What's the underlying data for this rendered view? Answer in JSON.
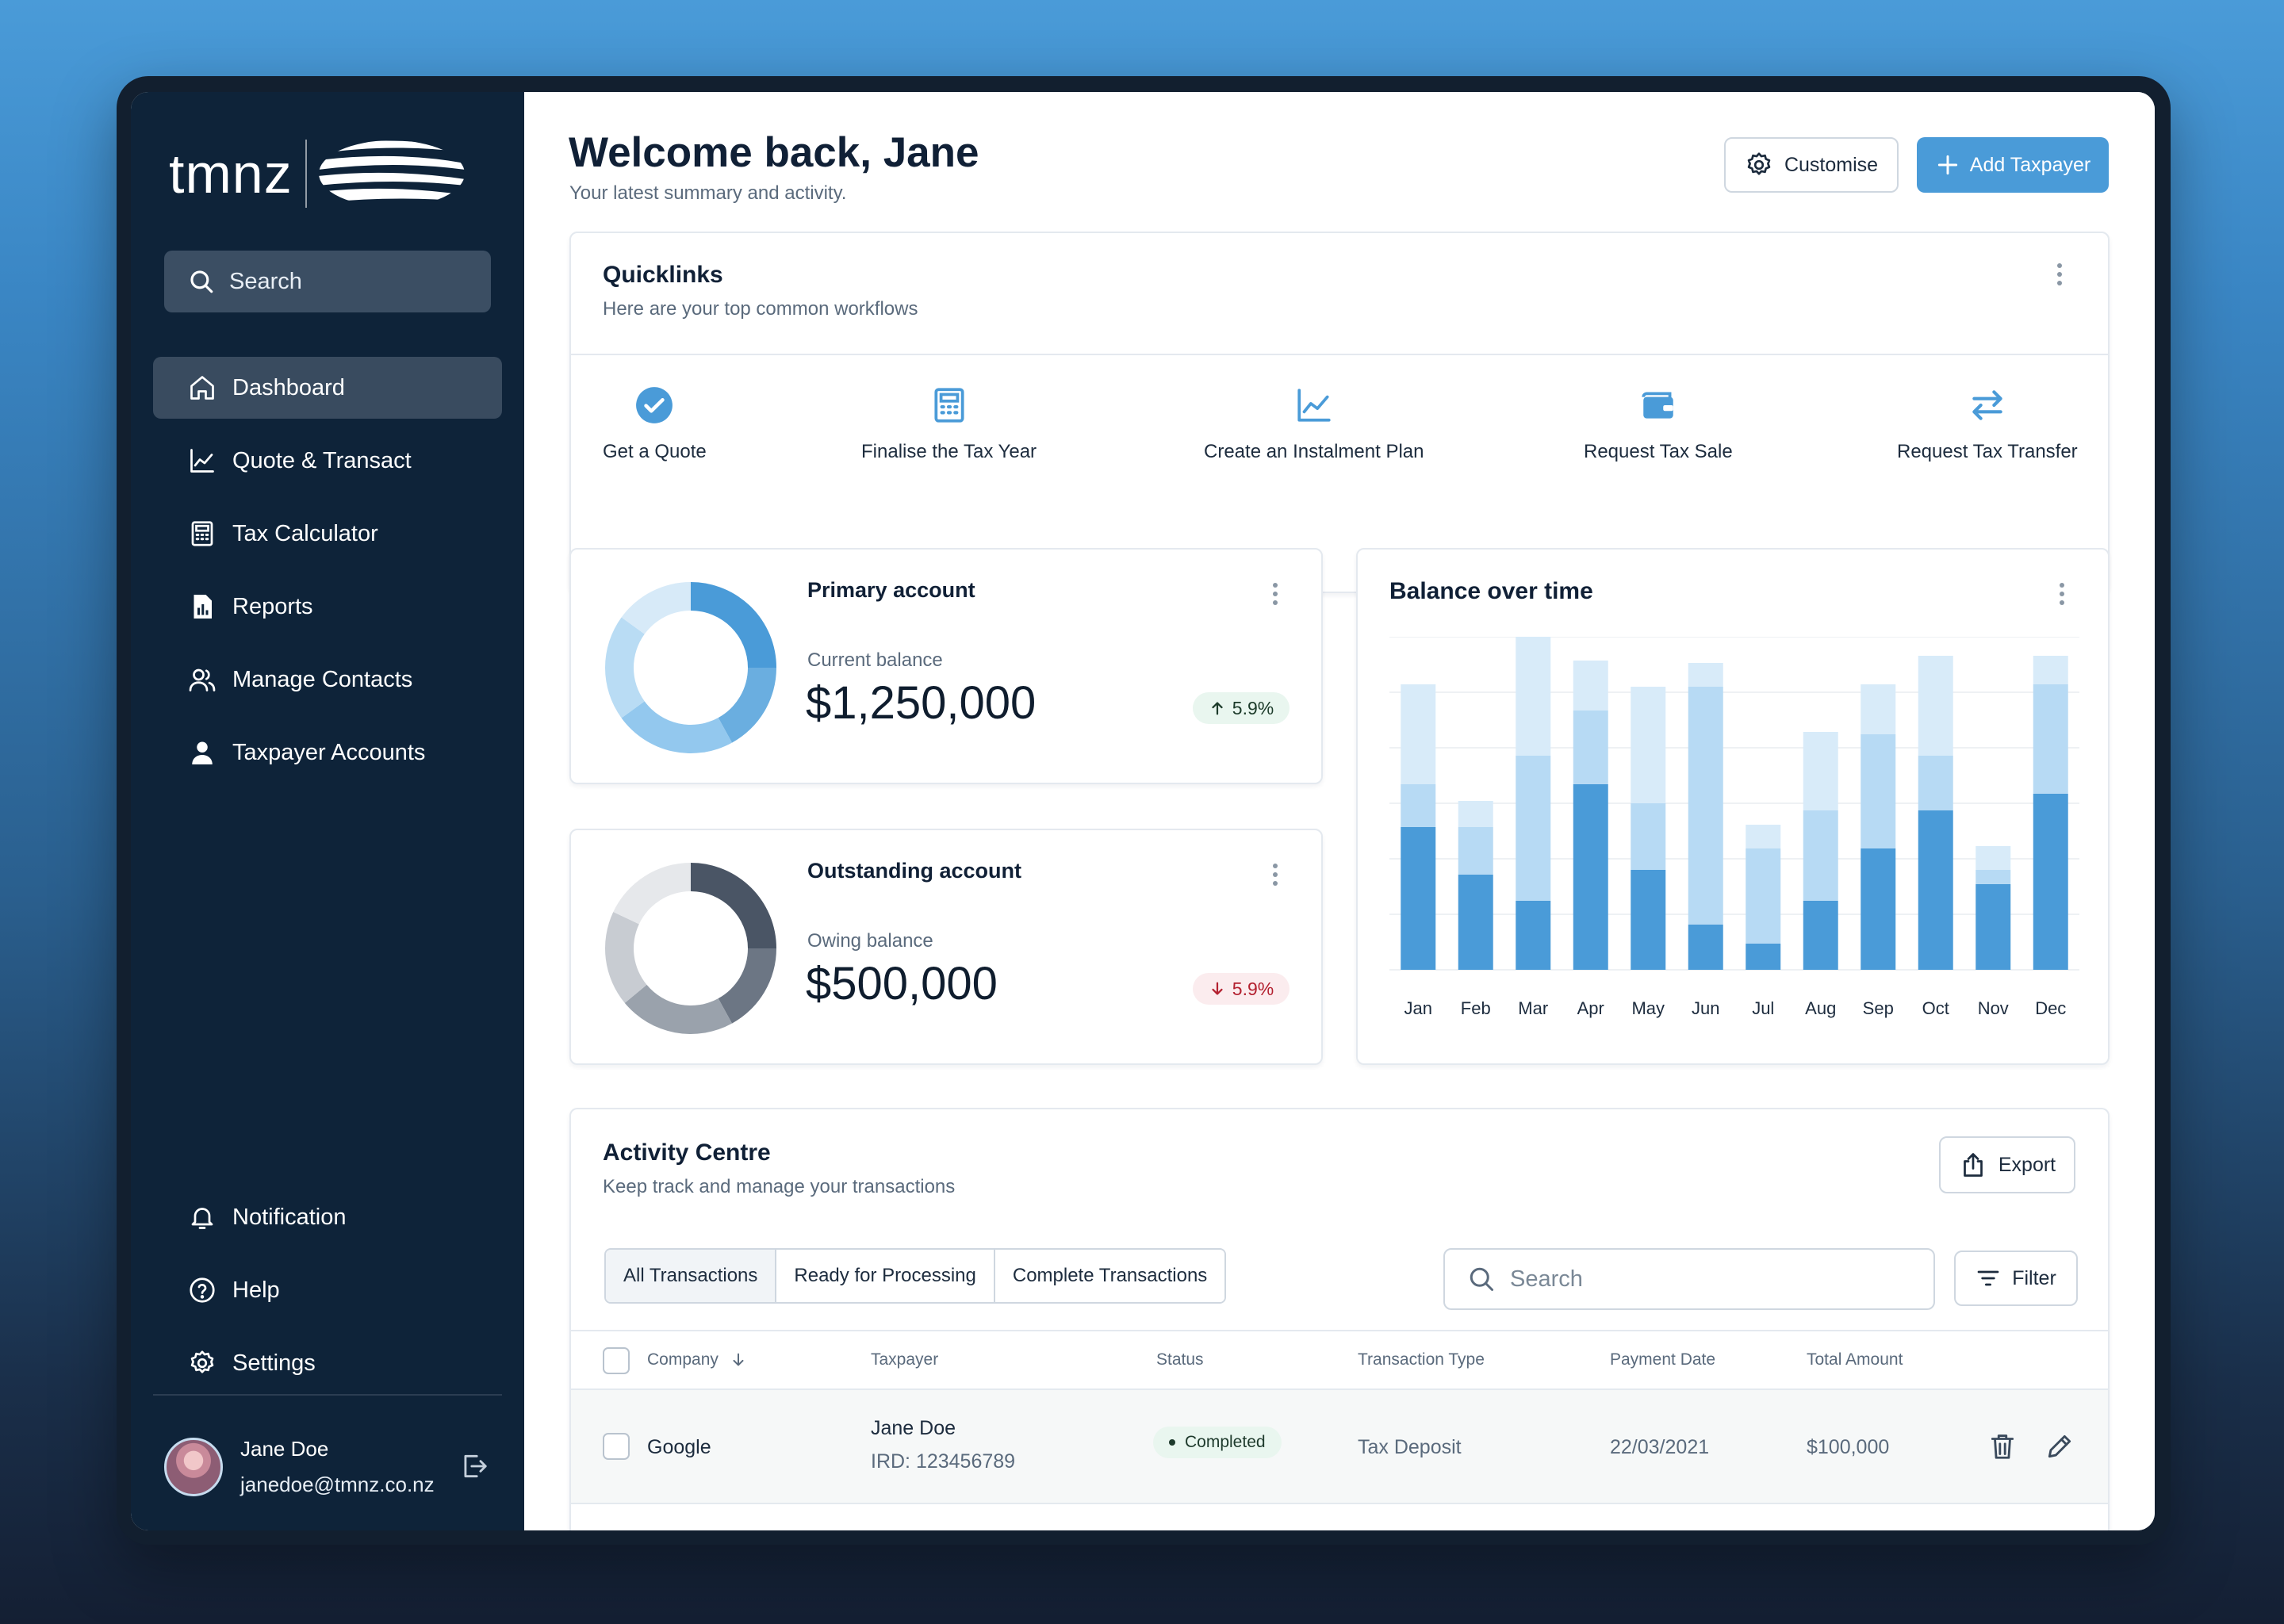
{
  "brand": {
    "logo_text": "tmnz"
  },
  "sidebar": {
    "search_placeholder": "Search",
    "items": [
      {
        "label": "Dashboard",
        "icon": "home-icon",
        "active": true
      },
      {
        "label": "Quote & Transact",
        "icon": "line-chart-icon"
      },
      {
        "label": "Tax Calculator",
        "icon": "calculator-icon"
      },
      {
        "label": "Reports",
        "icon": "report-icon"
      },
      {
        "label": "Manage Contacts",
        "icon": "contacts-icon"
      },
      {
        "label": "Taxpayer Accounts",
        "icon": "user-icon"
      }
    ],
    "bottom_items": [
      {
        "label": "Notification",
        "icon": "bell-icon"
      },
      {
        "label": "Help",
        "icon": "help-icon"
      },
      {
        "label": "Settings",
        "icon": "gear-icon"
      }
    ],
    "user": {
      "name": "Jane Doe",
      "email": "janedoe@tmnz.co.nz"
    }
  },
  "header": {
    "title": "Welcome back, Jane",
    "subtitle": "Your latest summary and activity.",
    "customise_label": "Customise",
    "add_label": "Add Taxpayer"
  },
  "quicklinks": {
    "title": "Quicklinks",
    "subtitle": "Here are your top common workflows",
    "items": [
      {
        "label": "Get a Quote",
        "icon": "check-circle-icon"
      },
      {
        "label": "Finalise the Tax Year",
        "icon": "calculator-icon"
      },
      {
        "label": "Create an Instalment Plan",
        "icon": "line-chart-icon"
      },
      {
        "label": "Request Tax Sale",
        "icon": "wallet-icon"
      },
      {
        "label": "Request Tax Transfer",
        "icon": "transfer-icon"
      }
    ]
  },
  "primary_account": {
    "title": "Primary account",
    "label": "Current balance",
    "value": "$1,250,000",
    "change": "5.9%",
    "direction": "up",
    "donut_segments": [
      0.25,
      0.17,
      0.23,
      0.2,
      0.15
    ],
    "donut_colors": [
      "#4a9bd8",
      "#6aaee0",
      "#93c8ee",
      "#b9dcf4",
      "#d7eaf8"
    ]
  },
  "outstanding_account": {
    "title": "Outstanding account",
    "label": "Owing balance",
    "value": "$500,000",
    "change": "5.9%",
    "direction": "down",
    "donut_segments": [
      0.25,
      0.17,
      0.22,
      0.18,
      0.18
    ],
    "donut_colors": [
      "#4a5565",
      "#6c7684",
      "#9aa2ac",
      "#c8ccd2",
      "#e6e8eb"
    ]
  },
  "balance_chart": {
    "title": "Balance over time"
  },
  "chart_data": {
    "type": "bar",
    "title": "Balance over time",
    "stacked": true,
    "categories": [
      "Jan",
      "Feb",
      "Mar",
      "Apr",
      "May",
      "Jun",
      "Jul",
      "Aug",
      "Sep",
      "Oct",
      "Nov",
      "Dec"
    ],
    "series": [
      {
        "values": [
          60,
          40,
          29,
          78,
          42,
          19,
          11,
          29,
          51,
          67,
          36,
          74
        ]
      },
      {
        "values": [
          18,
          20,
          61,
          31,
          28,
          100,
          40,
          38,
          48,
          23,
          6,
          46
        ]
      },
      {
        "values": [
          42,
          11,
          50,
          21,
          49,
          10,
          10,
          33,
          21,
          42,
          10,
          12
        ]
      }
    ],
    "colors": [
      "#4a9bd8",
      "#b7daf4",
      "#d8ebf9"
    ],
    "ylim": [
      0,
      140
    ],
    "grid": true
  },
  "activity": {
    "title": "Activity Centre",
    "subtitle": "Keep track and manage your transactions",
    "export_label": "Export",
    "tabs": [
      "All Transactions",
      "Ready for Processing",
      "Complete Transactions"
    ],
    "search_placeholder": "Search",
    "filter_label": "Filter",
    "columns": [
      "Company",
      "Taxpayer",
      "Status",
      "Transaction Type",
      "Payment Date",
      "Total Amount"
    ],
    "rows": [
      {
        "company": "Google",
        "taxpayer": "Jane Doe",
        "ird": "IRD: 123456789",
        "status": "Completed",
        "type": "Tax Deposit",
        "date": "22/03/2021",
        "amount": "$100,000"
      }
    ]
  }
}
